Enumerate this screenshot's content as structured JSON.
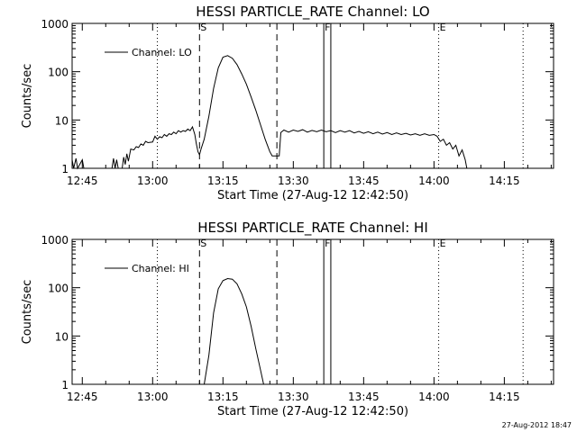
{
  "footer": {
    "timestamp": "27-Aug-2012 18:47"
  },
  "chart_data": [
    {
      "type": "line",
      "title": "HESSI PARTICLE_RATE Channel: LO",
      "xlabel": "Start Time (27-Aug-12 12:42:50)",
      "ylabel": "Counts/sec",
      "y_scale": "log",
      "ylim": [
        1,
        1000
      ],
      "xlim": [
        "12:42:50",
        "14:25:30"
      ],
      "x_ticks": [
        "12:45",
        "13:00",
        "13:15",
        "13:30",
        "13:45",
        "14:00",
        "14:15"
      ],
      "y_ticks": [
        "1",
        "10",
        "100",
        "1000"
      ],
      "legend": {
        "position": "top-left",
        "entries": [
          "Channel: LO"
        ]
      },
      "markers": [
        {
          "label": "S",
          "time": "13:10:00",
          "style": "dashed"
        },
        {
          "label": "",
          "time": "13:26:30",
          "style": "dashed"
        },
        {
          "label": "F",
          "time": "13:36:30",
          "style": "solid"
        },
        {
          "label": "",
          "time": "13:38:00",
          "style": "solid"
        },
        {
          "label": "E",
          "time": "14:01:00",
          "style": "dotted"
        },
        {
          "label": "",
          "time": "13:01:00",
          "style": "dotted"
        },
        {
          "label": "",
          "time": "14:19:00",
          "style": "dotted"
        }
      ],
      "series": [
        {
          "name": "Channel: LO",
          "points": [
            [
              "12:42:50",
              1.5
            ],
            [
              "12:43:10",
              1
            ],
            [
              "12:43:40",
              1.6
            ],
            [
              "12:44:00",
              1
            ],
            [
              "12:45:00",
              1.5
            ],
            [
              "12:45:20",
              1
            ],
            [
              "12:51:20",
              1
            ],
            [
              "12:51:40",
              1.6
            ],
            [
              "12:52:00",
              1
            ],
            [
              "12:52:20",
              1.5
            ],
            [
              "12:52:40",
              1
            ],
            [
              "12:53:30",
              1
            ],
            [
              "12:53:50",
              1.7
            ],
            [
              "12:54:10",
              1.2
            ],
            [
              "12:54:30",
              2
            ],
            [
              "12:54:50",
              1.4
            ],
            [
              "12:55:20",
              2.5
            ],
            [
              "12:56:00",
              2.4
            ],
            [
              "12:56:30",
              2.8
            ],
            [
              "12:57:00",
              2.7
            ],
            [
              "12:57:30",
              3.2
            ],
            [
              "12:58:00",
              3.0
            ],
            [
              "12:58:30",
              3.6
            ],
            [
              "12:59:00",
              3.4
            ],
            [
              "13:00:00",
              3.5
            ],
            [
              "13:00:30",
              4.6
            ],
            [
              "13:01:00",
              4.0
            ],
            [
              "13:01:30",
              4.5
            ],
            [
              "13:02:00",
              4.3
            ],
            [
              "13:02:30",
              5.0
            ],
            [
              "13:03:00",
              4.6
            ],
            [
              "13:03:30",
              5.2
            ],
            [
              "13:04:00",
              5.0
            ],
            [
              "13:04:30",
              5.6
            ],
            [
              "13:05:00",
              5.2
            ],
            [
              "13:05:30",
              6.0
            ],
            [
              "13:06:00",
              5.6
            ],
            [
              "13:06:30",
              6.0
            ],
            [
              "13:07:00",
              5.8
            ],
            [
              "13:07:30",
              6.5
            ],
            [
              "13:08:00",
              6.0
            ],
            [
              "13:08:30",
              7.2
            ],
            [
              "13:09:00",
              5.0
            ],
            [
              "13:09:20",
              3.2
            ],
            [
              "13:09:40",
              2.2
            ],
            [
              "13:10:00",
              1.9
            ],
            [
              "13:10:20",
              2.5
            ],
            [
              "13:11:00",
              4.0
            ],
            [
              "13:12:00",
              12
            ],
            [
              "13:13:00",
              45
            ],
            [
              "13:14:00",
              120
            ],
            [
              "13:15:00",
              200
            ],
            [
              "13:16:00",
              215
            ],
            [
              "13:17:00",
              190
            ],
            [
              "13:18:00",
              140
            ],
            [
              "13:19:00",
              90
            ],
            [
              "13:20:00",
              55
            ],
            [
              "13:21:00",
              30
            ],
            [
              "13:22:00",
              16
            ],
            [
              "13:23:00",
              8
            ],
            [
              "13:24:00",
              4
            ],
            [
              "13:25:00",
              2.2
            ],
            [
              "13:25:30",
              1.8
            ],
            [
              "13:27:00",
              1.8
            ],
            [
              "13:27:20",
              5.5
            ],
            [
              "13:28:00",
              6.2
            ],
            [
              "13:29:00",
              5.6
            ],
            [
              "13:30:00",
              6.2
            ],
            [
              "13:31:00",
              5.8
            ],
            [
              "13:32:00",
              6.3
            ],
            [
              "13:33:00",
              5.6
            ],
            [
              "13:34:00",
              6.1
            ],
            [
              "13:35:00",
              5.7
            ],
            [
              "13:36:00",
              6.2
            ],
            [
              "13:37:00",
              5.7
            ],
            [
              "13:38:00",
              6.0
            ],
            [
              "13:39:00",
              5.5
            ],
            [
              "13:40:00",
              6.0
            ],
            [
              "13:41:00",
              5.6
            ],
            [
              "13:42:00",
              6.0
            ],
            [
              "13:43:00",
              5.4
            ],
            [
              "13:44:00",
              5.8
            ],
            [
              "13:45:00",
              5.3
            ],
            [
              "13:46:00",
              5.7
            ],
            [
              "13:47:00",
              5.2
            ],
            [
              "13:48:00",
              5.6
            ],
            [
              "13:49:00",
              5.1
            ],
            [
              "13:50:00",
              5.5
            ],
            [
              "13:51:00",
              5.0
            ],
            [
              "13:52:00",
              5.4
            ],
            [
              "13:53:00",
              5.0
            ],
            [
              "13:54:00",
              5.3
            ],
            [
              "13:55:00",
              4.9
            ],
            [
              "13:56:00",
              5.2
            ],
            [
              "13:57:00",
              4.8
            ],
            [
              "13:58:00",
              5.2
            ],
            [
              "13:59:00",
              4.8
            ],
            [
              "14:00:00",
              5.0
            ],
            [
              "14:00:40",
              4.6
            ],
            [
              "14:01:20",
              3.6
            ],
            [
              "14:02:00",
              4.0
            ],
            [
              "14:02:40",
              3.0
            ],
            [
              "14:03:20",
              3.4
            ],
            [
              "14:04:00",
              2.5
            ],
            [
              "14:04:40",
              3.0
            ],
            [
              "14:05:20",
              1.8
            ],
            [
              "14:06:00",
              2.4
            ],
            [
              "14:06:40",
              1.5
            ],
            [
              "14:07:00",
              1
            ]
          ]
        }
      ]
    },
    {
      "type": "line",
      "title": "HESSI PARTICLE_RATE Channel: HI",
      "xlabel": "Start Time (27-Aug-12 12:42:50)",
      "ylabel": "Counts/sec",
      "y_scale": "log",
      "ylim": [
        1,
        1000
      ],
      "xlim": [
        "12:42:50",
        "14:25:30"
      ],
      "x_ticks": [
        "12:45",
        "13:00",
        "13:15",
        "13:30",
        "13:45",
        "14:00",
        "14:15"
      ],
      "y_ticks": [
        "1",
        "10",
        "100",
        "1000"
      ],
      "legend": {
        "position": "top-left",
        "entries": [
          "Channel: HI"
        ]
      },
      "markers": [
        {
          "label": "S",
          "time": "13:10:00",
          "style": "dashed"
        },
        {
          "label": "",
          "time": "13:26:30",
          "style": "dashed"
        },
        {
          "label": "F",
          "time": "13:36:30",
          "style": "solid"
        },
        {
          "label": "",
          "time": "13:38:00",
          "style": "solid"
        },
        {
          "label": "E",
          "time": "14:01:00",
          "style": "dotted"
        },
        {
          "label": "",
          "time": "13:01:00",
          "style": "dotted"
        },
        {
          "label": "",
          "time": "14:19:00",
          "style": "dotted"
        }
      ],
      "series": [
        {
          "name": "Channel: HI",
          "points": [
            [
              "13:11:00",
              1
            ],
            [
              "13:12:00",
              4
            ],
            [
              "13:13:00",
              30
            ],
            [
              "13:14:00",
              95
            ],
            [
              "13:15:00",
              140
            ],
            [
              "13:16:00",
              155
            ],
            [
              "13:17:00",
              150
            ],
            [
              "13:18:00",
              120
            ],
            [
              "13:19:00",
              75
            ],
            [
              "13:20:00",
              40
            ],
            [
              "13:21:00",
              16
            ],
            [
              "13:22:00",
              5.5
            ],
            [
              "13:23:00",
              2
            ],
            [
              "13:23:40",
              1
            ]
          ]
        }
      ]
    }
  ]
}
